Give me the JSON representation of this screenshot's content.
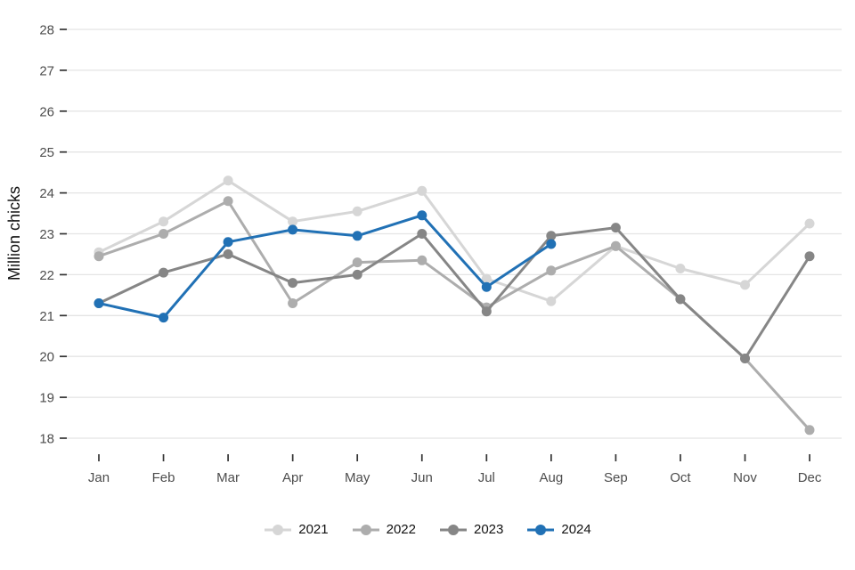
{
  "chart_data": {
    "type": "line",
    "title": "",
    "xlabel": "",
    "ylabel": "Million chicks",
    "categories": [
      "Jan",
      "Feb",
      "Mar",
      "Apr",
      "May",
      "Jun",
      "Jul",
      "Aug",
      "Sep",
      "Oct",
      "Nov",
      "Dec"
    ],
    "yticks": [
      18,
      19,
      20,
      21,
      22,
      23,
      24,
      25,
      26,
      27,
      28
    ],
    "ylim": [
      17.6,
      28.4
    ],
    "grid": "horizontal-major",
    "legend_position": "bottom-center",
    "series": [
      {
        "name": "2021",
        "color": "#d6d6d6",
        "values": [
          22.55,
          23.3,
          24.3,
          23.3,
          23.55,
          24.05,
          21.9,
          21.35,
          22.7,
          22.15,
          21.75,
          23.25
        ]
      },
      {
        "name": "2022",
        "color": "#adadad",
        "values": [
          22.45,
          23.0,
          23.8,
          21.3,
          22.3,
          22.35,
          21.2,
          22.1,
          22.7,
          21.4,
          19.95,
          18.2
        ]
      },
      {
        "name": "2023",
        "color": "#868686",
        "values": [
          21.3,
          22.05,
          22.5,
          21.8,
          22.0,
          23.0,
          21.1,
          22.95,
          23.15,
          21.4,
          19.95,
          22.45
        ]
      },
      {
        "name": "2024",
        "color": "#2171b5",
        "values": [
          21.3,
          20.95,
          22.8,
          23.1,
          22.95,
          23.45,
          21.7,
          22.75,
          null,
          null,
          null,
          null
        ]
      }
    ]
  }
}
